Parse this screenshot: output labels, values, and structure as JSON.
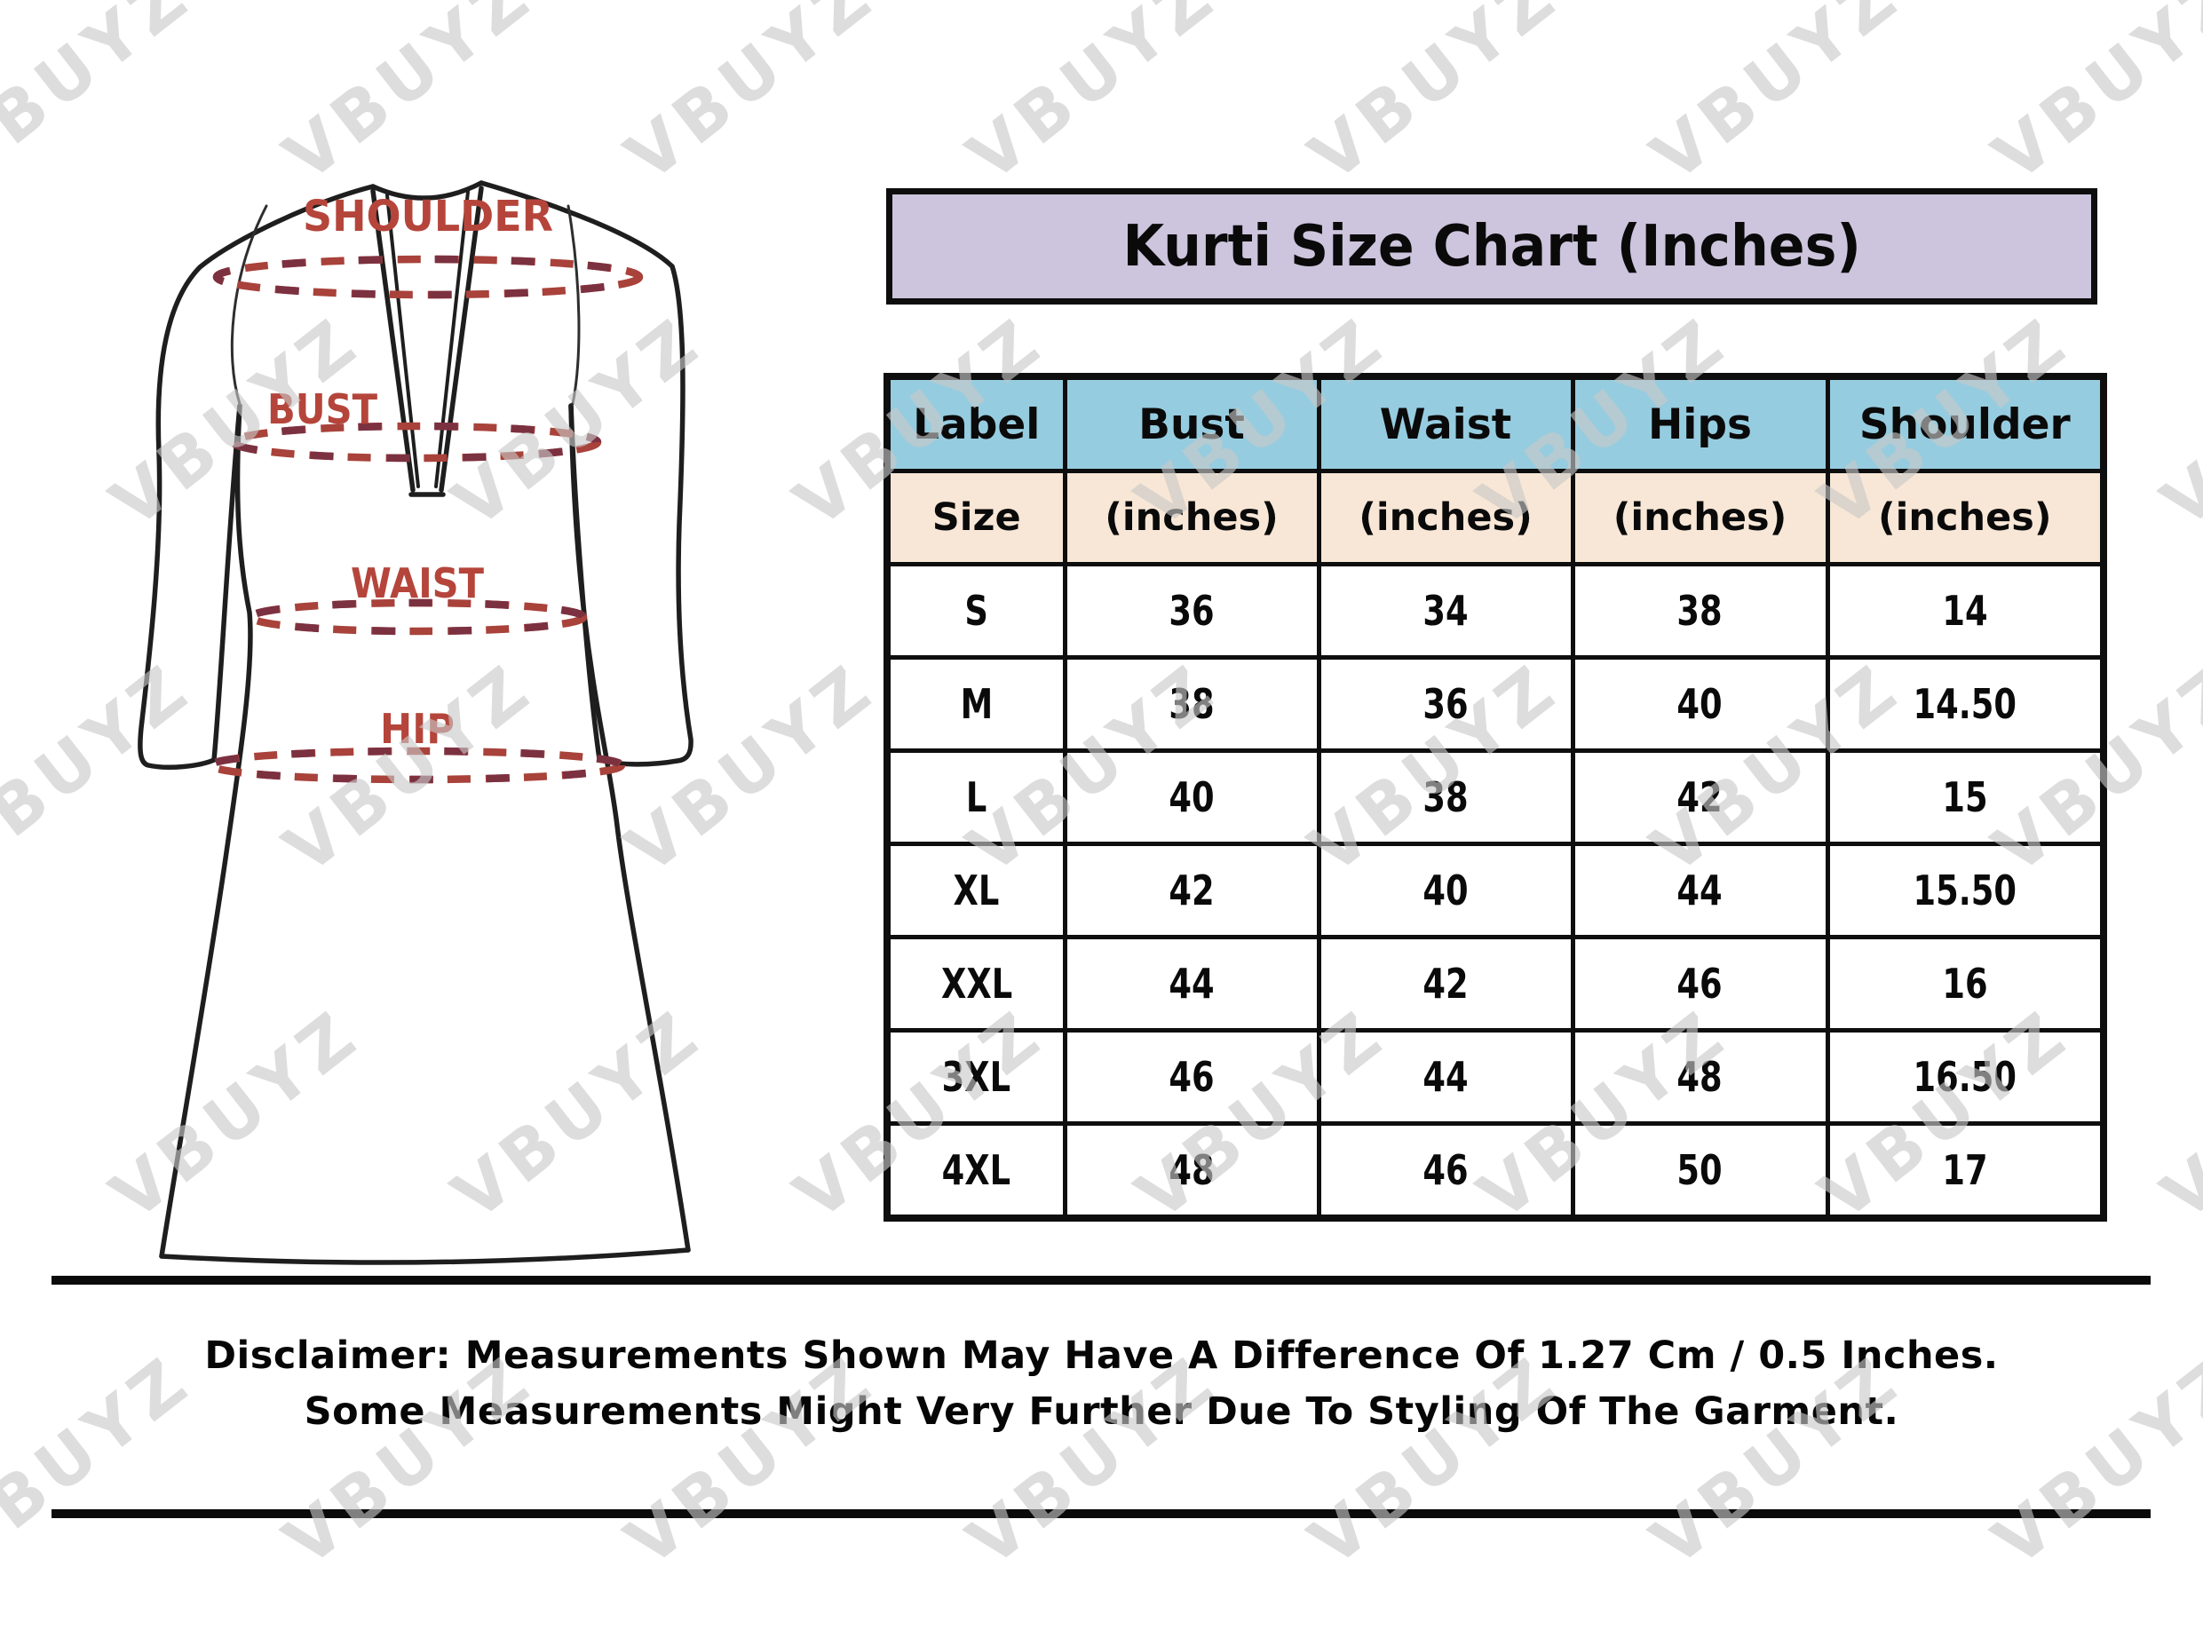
{
  "title": "Kurti Size Chart (Inches)",
  "watermark": {
    "text": "VBUYZ",
    "color": "#c9c9c9"
  },
  "diagram": {
    "labels": {
      "shoulder": "SHOULDER",
      "bust": "BUST",
      "waist": "WAIST",
      "hip": "HIP"
    },
    "label_color": "#b5453b",
    "dash_color": "#a8423a",
    "dash_color_dark": "#7c3140",
    "outline_color": "#1e1e1e"
  },
  "table": {
    "title_bg": "#cdc4dd",
    "header_bg": "#96ccdf",
    "subheader_bg": "#f8e7d6",
    "columns": [
      {
        "label": "Label",
        "sub": "Size"
      },
      {
        "label": "Bust",
        "sub": "(inches)"
      },
      {
        "label": "Waist",
        "sub": "(inches)"
      },
      {
        "label": "Hips",
        "sub": "(inches)"
      },
      {
        "label": "Shoulder",
        "sub": "(inches)"
      }
    ],
    "rows": [
      [
        "S",
        "36",
        "34",
        "38",
        "14"
      ],
      [
        "M",
        "38",
        "36",
        "40",
        "14.50"
      ],
      [
        "L",
        "40",
        "38",
        "42",
        "15"
      ],
      [
        "XL",
        "42",
        "40",
        "44",
        "15.50"
      ],
      [
        "XXL",
        "44",
        "42",
        "46",
        "16"
      ],
      [
        "3XL",
        "46",
        "44",
        "48",
        "16.50"
      ],
      [
        "4XL",
        "48",
        "46",
        "50",
        "17"
      ]
    ]
  },
  "disclaimer": {
    "line1": "Disclaimer: Measurements Shown May Have A Difference Of 1.27 Cm / 0.5 Inches.",
    "line2": "Some Measurements Might Very Further Due To Styling Of The Garment."
  },
  "chart_data": {
    "type": "table",
    "title": "Kurti Size Chart (Inches)",
    "columns": [
      "Label Size",
      "Bust (inches)",
      "Waist (inches)",
      "Hips (inches)",
      "Shoulder (inches)"
    ],
    "rows": [
      [
        "S",
        36,
        34,
        38,
        14
      ],
      [
        "M",
        38,
        36,
        40,
        14.5
      ],
      [
        "L",
        40,
        38,
        42,
        15
      ],
      [
        "XL",
        42,
        40,
        44,
        15.5
      ],
      [
        "XXL",
        44,
        42,
        46,
        16
      ],
      [
        "3XL",
        46,
        44,
        48,
        16.5
      ],
      [
        "4XL",
        48,
        46,
        50,
        17
      ]
    ]
  }
}
